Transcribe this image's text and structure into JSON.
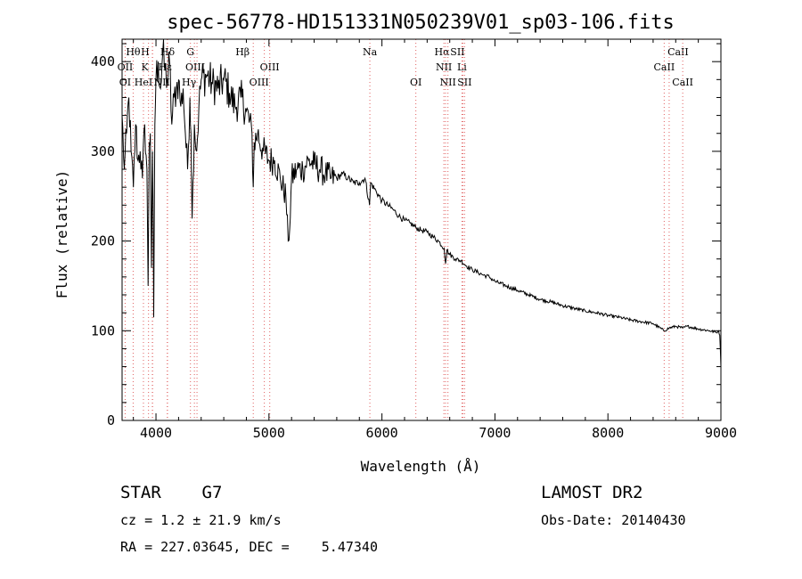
{
  "chart_data": {
    "type": "line",
    "title": "spec-56778-HD151331N050239V01_sp03-106.fits",
    "xlabel": "Wavelength (Å)",
    "ylabel": "Flux (relative)",
    "xlim": [
      3700,
      9000
    ],
    "ylim": [
      0,
      425
    ],
    "xticks": [
      4000,
      5000,
      6000,
      7000,
      8000,
      9000
    ],
    "yticks": [
      0,
      100,
      200,
      300,
      400
    ],
    "grid": false,
    "line_color": "#000000",
    "marker_color": "#e06060",
    "series": [
      {
        "x": [
          3700,
          3720,
          3740,
          3760,
          3780,
          3800,
          3820,
          3840,
          3860,
          3880,
          3900,
          3920,
          3930,
          3940,
          3950,
          3960,
          3970,
          3980,
          3990,
          4000,
          4020,
          4040,
          4060,
          4080,
          4100,
          4120,
          4140,
          4160,
          4180,
          4200,
          4220,
          4240,
          4260,
          4280,
          4300,
          4310,
          4320,
          4340,
          4360,
          4380,
          4400,
          4450,
          4500,
          4550,
          4600,
          4650,
          4700,
          4750,
          4800,
          4850,
          4861,
          4870,
          4900,
          4950,
          5000,
          5050,
          5100,
          5150,
          5170,
          5184,
          5200,
          5250,
          5300,
          5350,
          5400,
          5450,
          5500,
          5550,
          5600,
          5650,
          5700,
          5750,
          5800,
          5850,
          5890,
          5900,
          5950,
          6000,
          6050,
          6100,
          6150,
          6200,
          6250,
          6300,
          6350,
          6400,
          6450,
          6500,
          6550,
          6563,
          6575,
          6600,
          6650,
          6700,
          6750,
          6800,
          6850,
          6900,
          6950,
          7000,
          7100,
          7200,
          7300,
          7400,
          7500,
          7600,
          7700,
          7800,
          7900,
          8000,
          8100,
          8200,
          8300,
          8400,
          8498,
          8542,
          8600,
          8662,
          8700,
          8800,
          8900,
          8960,
          8980,
          8990,
          9000
        ],
        "y": [
          340,
          280,
          320,
          360,
          300,
          260,
          330,
          290,
          300,
          270,
          330,
          280,
          150,
          310,
          320,
          170,
          300,
          115,
          330,
          380,
          400,
          370,
          410,
          390,
          380,
          400,
          330,
          360,
          370,
          380,
          350,
          370,
          320,
          280,
          360,
          320,
          225,
          330,
          300,
          350,
          380,
          385,
          375,
          370,
          380,
          365,
          350,
          360,
          345,
          320,
          260,
          310,
          320,
          300,
          290,
          290,
          270,
          250,
          200,
          215,
          270,
          280,
          280,
          290,
          285,
          280,
          275,
          270,
          270,
          275,
          270,
          265,
          265,
          270,
          240,
          265,
          255,
          245,
          240,
          235,
          228,
          223,
          220,
          215,
          212,
          210,
          205,
          200,
          192,
          175,
          190,
          185,
          180,
          178,
          172,
          168,
          165,
          162,
          160,
          155,
          150,
          145,
          140,
          135,
          132,
          128,
          125,
          122,
          120,
          117,
          115,
          112,
          110,
          108,
          100,
          103,
          105,
          103,
          105,
          102,
          100,
          98,
          100,
          95,
          60
        ]
      }
    ],
    "line_markers": [
      {
        "label": "Hθ",
        "x": 3798,
        "row": 0,
        "dx": 0
      },
      {
        "label": "OII",
        "x": 3727,
        "row": 1,
        "dx": 0
      },
      {
        "label": "OI",
        "x": 3727,
        "row": 2,
        "dx": 0
      },
      {
        "label": "H",
        "x": 3968,
        "row": 0,
        "dx": -8
      },
      {
        "label": "K",
        "x": 3934,
        "row": 1,
        "dx": -4
      },
      {
        "label": "HeI",
        "x": 3889,
        "row": 2,
        "dx": 0
      },
      {
        "label": "Hδ",
        "x": 4102,
        "row": 0,
        "dx": 0
      },
      {
        "label": "Hε",
        "x": 3970,
        "row": 1,
        "dx": 14
      },
      {
        "label": "NII",
        "x": 4100,
        "row": 2,
        "dx": -6
      },
      {
        "label": "G",
        "x": 4305,
        "row": 0,
        "dx": 0
      },
      {
        "label": "OIII",
        "x": 4363,
        "row": 1,
        "dx": -2
      },
      {
        "label": "Hγ",
        "x": 4340,
        "row": 2,
        "dx": -6
      },
      {
        "label": "Hβ",
        "x": 4861,
        "row": 0,
        "dx": -12
      },
      {
        "label": "OIII",
        "x": 4959,
        "row": 1,
        "dx": 6
      },
      {
        "label": "OIII",
        "x": 5007,
        "row": 2,
        "dx": -12
      },
      {
        "label": "Na",
        "x": 5893,
        "row": 0,
        "dx": 0
      },
      {
        "label": "OI",
        "x": 6300,
        "row": 2,
        "dx": 0
      },
      {
        "label": "Hα",
        "x": 6563,
        "row": 0,
        "dx": -4
      },
      {
        "label": "SII",
        "x": 6716,
        "row": 0,
        "dx": -6
      },
      {
        "label": "NII",
        "x": 6548,
        "row": 1,
        "dx": 0
      },
      {
        "label": "Li",
        "x": 6708,
        "row": 1,
        "dx": 0
      },
      {
        "label": "NII",
        "x": 6584,
        "row": 2,
        "dx": 0
      },
      {
        "label": "SII",
        "x": 6731,
        "row": 2,
        "dx": 0
      },
      {
        "label": "CaII",
        "x": 8542,
        "row": 0,
        "dx": 10
      },
      {
        "label": "CaII",
        "x": 8498,
        "row": 1,
        "dx": 0
      },
      {
        "label": "CaII",
        "x": 8662,
        "row": 2,
        "dx": 0
      }
    ]
  },
  "info": {
    "class_label": "STAR    G7",
    "survey": "LAMOST DR2",
    "cz": "cz = 1.2 ± 21.9 km/s",
    "obs_date": "Obs-Date: 20140430",
    "radec": "RA = 227.03645, DEC =    5.47340"
  }
}
